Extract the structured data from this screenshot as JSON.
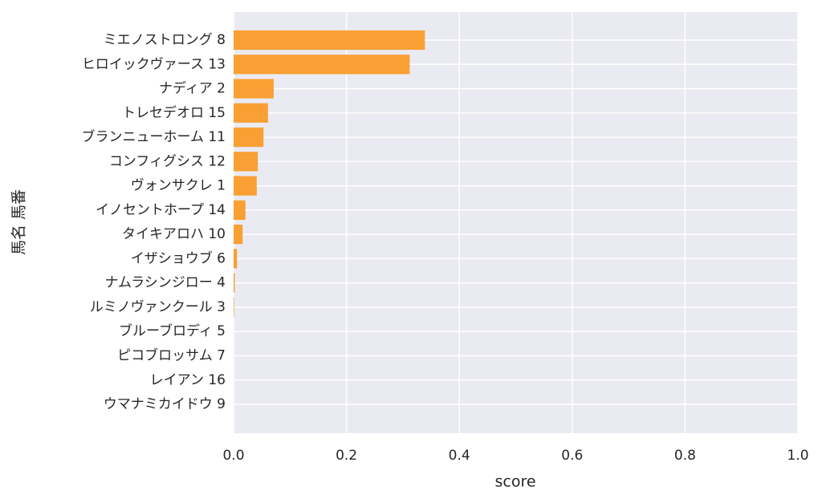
{
  "chart_data": {
    "type": "barh",
    "xlabel": "score",
    "ylabel": "馬名 馬番",
    "categories": [
      "ミエノストロング 8",
      "ヒロイックヴァース 13",
      "ナディア 2",
      "トレセデオロ 15",
      "ブランニューホーム 11",
      "コンフィグシス 12",
      "ヴォンサクレ 1",
      "イノセントホープ 14",
      "タイキアロハ 10",
      "イザショウブ 6",
      "ナムラシンジロー 4",
      "ルミノヴァンクール 3",
      "ブルーブロディ 5",
      "ピコブロッサム 7",
      "レイアン 16",
      "ウマナミカイドウ 9"
    ],
    "values": [
      0.339,
      0.312,
      0.071,
      0.061,
      0.053,
      0.043,
      0.041,
      0.021,
      0.016,
      0.006,
      0.002,
      0.001,
      0,
      0,
      0,
      0
    ],
    "color": "#f9a034",
    "xlim": [
      0,
      1
    ],
    "xticks": [
      {
        "value": 0,
        "label": "0.0"
      },
      0.2,
      0.4,
      0.6,
      0.8,
      {
        "value": 1,
        "label": "1.0"
      }
    ],
    "grid": true
  }
}
